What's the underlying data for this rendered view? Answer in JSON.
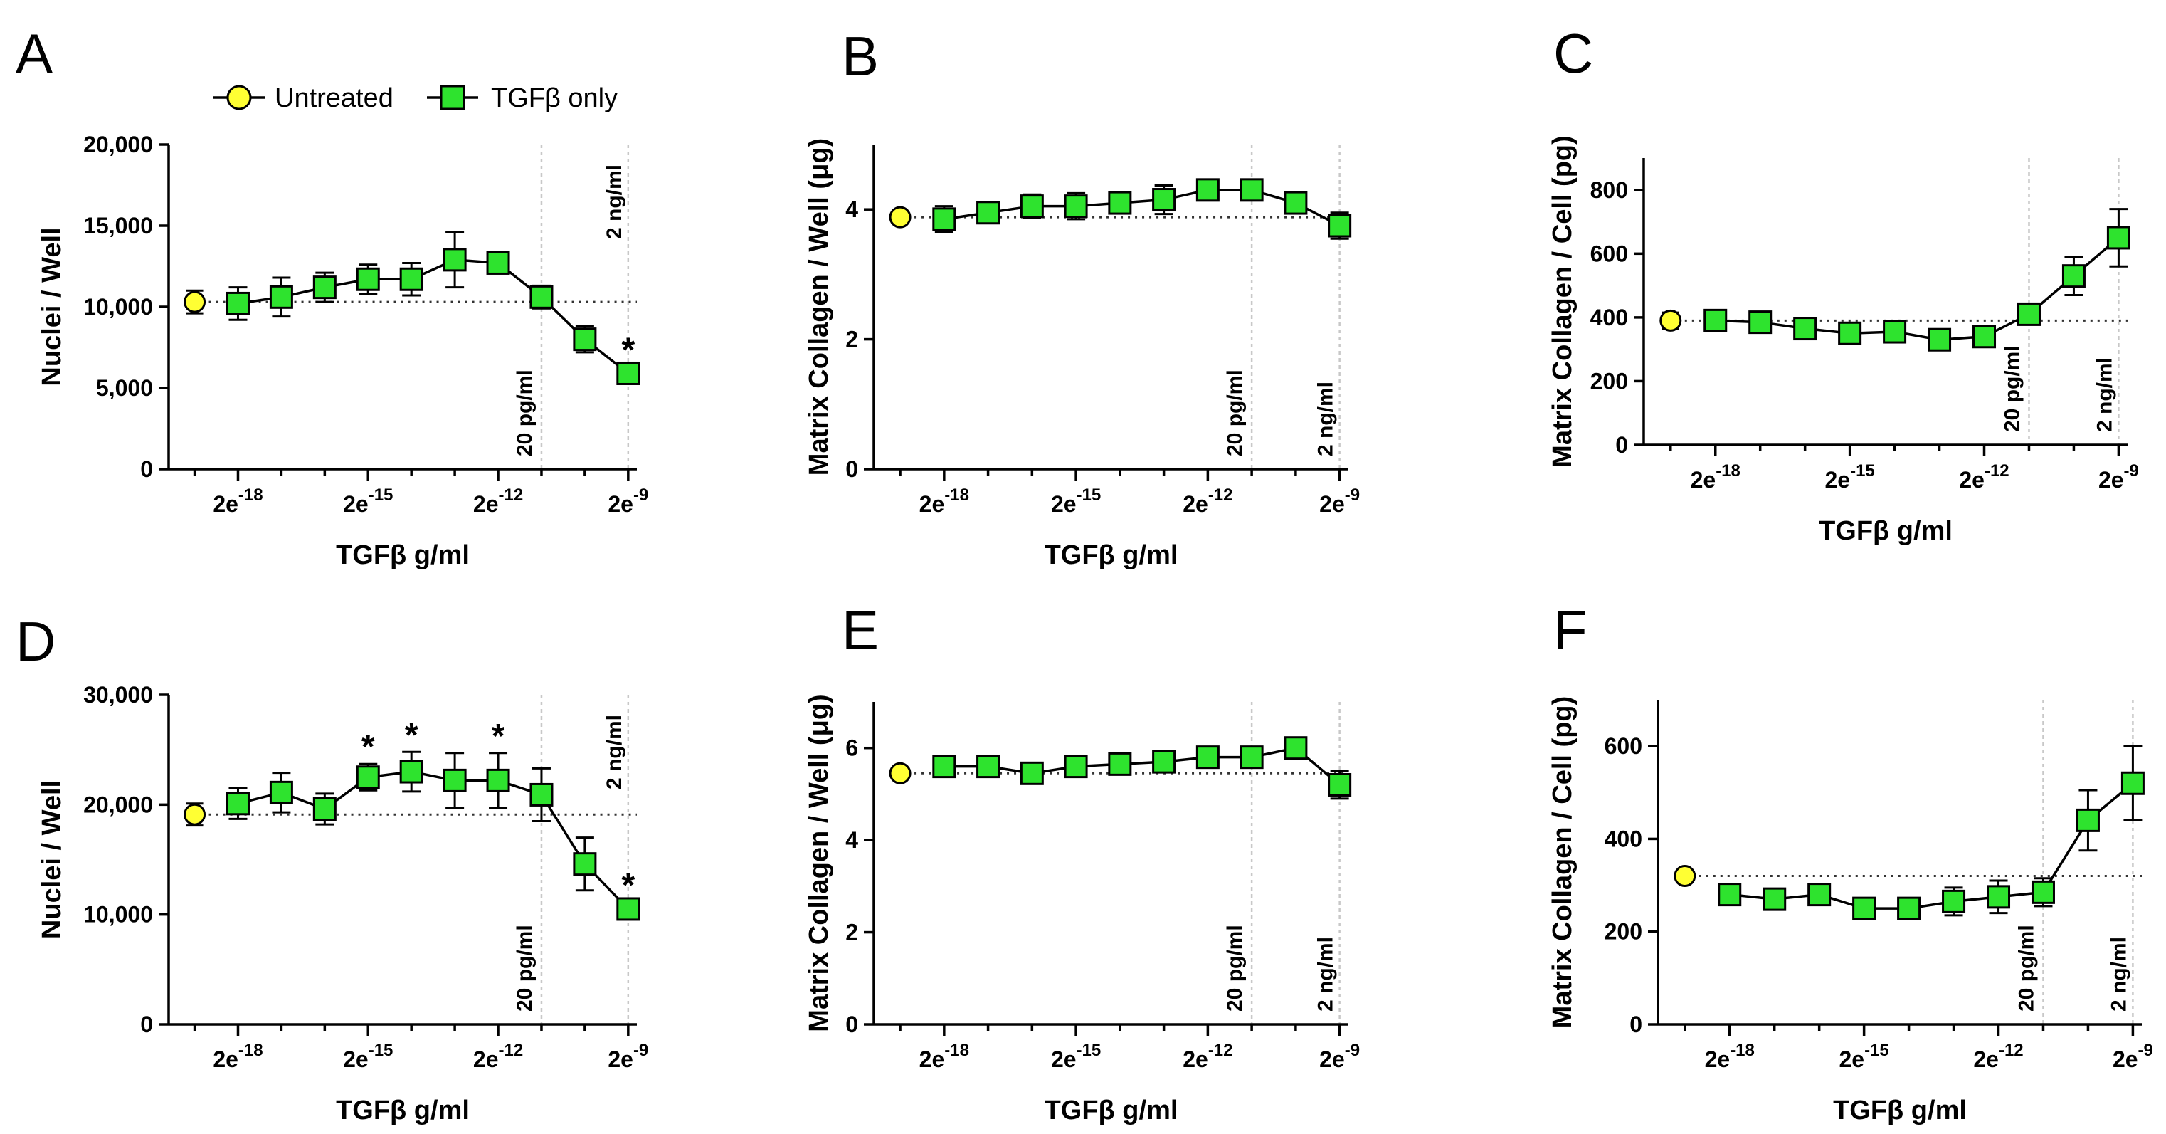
{
  "legend": {
    "untreated": {
      "label": "Untreated",
      "color": "#ffff33"
    },
    "tgfb": {
      "label": "TGFβ only",
      "color": "#2ee32e"
    }
  },
  "chart_data": [
    {
      "letter": "A",
      "type": "line",
      "xlabel": "TGFβ g/ml",
      "ylabel": "Nuclei / Well",
      "ylim": [
        0,
        20000
      ],
      "yticks": [
        0,
        5000,
        10000,
        15000,
        20000
      ],
      "yticklabels": [
        "0",
        "5,000",
        "10,000",
        "15,000",
        "20,000"
      ],
      "xtick_labels": [
        "2e-18",
        "2e-15",
        "2e-12",
        "2e-9"
      ],
      "ref_labels": [
        "20 pg/ml",
        "2 ng/ml"
      ],
      "untreated": {
        "value": 10300,
        "err": 700
      },
      "series": [
        {
          "x": -18,
          "y": 10200,
          "err": 1000
        },
        {
          "x": -17,
          "y": 10600,
          "err": 1200
        },
        {
          "x": -16,
          "y": 11200,
          "err": 900
        },
        {
          "x": -15,
          "y": 11700,
          "err": 900
        },
        {
          "x": -14,
          "y": 11700,
          "err": 1000
        },
        {
          "x": -13,
          "y": 12900,
          "err": 1700
        },
        {
          "x": -12,
          "y": 12700,
          "err": 600
        },
        {
          "x": -11,
          "y": 10600,
          "err": 700
        },
        {
          "x": -10,
          "y": 8000,
          "err": 800
        },
        {
          "x": -9,
          "y": 5900,
          "err": 400
        }
      ],
      "stars": [
        {
          "x": -9,
          "label": "*"
        }
      ]
    },
    {
      "letter": "B",
      "type": "line",
      "xlabel": "TGFβ g/ml",
      "ylabel": "Matrix Collagen / Well (μg)",
      "ylim": [
        0,
        5
      ],
      "yticks": [
        0,
        2,
        4
      ],
      "yticklabels": [
        "0",
        "2",
        "4"
      ],
      "xtick_labels": [
        "2e-18",
        "2e-15",
        "2e-12",
        "2e-9"
      ],
      "ref_labels": [
        "20 pg/ml",
        "2 ng/ml"
      ],
      "untreated": {
        "value": 3.88,
        "err": 0
      },
      "series": [
        {
          "x": -18,
          "y": 3.85,
          "err": 0.2
        },
        {
          "x": -17,
          "y": 3.95,
          "err": 0.15
        },
        {
          "x": -16,
          "y": 4.05,
          "err": 0.18
        },
        {
          "x": -15,
          "y": 4.05,
          "err": 0.2
        },
        {
          "x": -14,
          "y": 4.1,
          "err": 0.15
        },
        {
          "x": -13,
          "y": 4.15,
          "err": 0.22
        },
        {
          "x": -12,
          "y": 4.3,
          "err": 0.1
        },
        {
          "x": -11,
          "y": 4.3,
          "err": 0.12
        },
        {
          "x": -10,
          "y": 4.1,
          "err": 0.1
        },
        {
          "x": -9,
          "y": 3.75,
          "err": 0.2
        }
      ],
      "stars": []
    },
    {
      "letter": "C",
      "type": "line",
      "xlabel": "TGFβ g/ml",
      "ylabel": "Matrix Collagen / Cell (pg)",
      "ylim": [
        0,
        900
      ],
      "yticks": [
        0,
        200,
        400,
        600,
        800
      ],
      "yticklabels": [
        "0",
        "200",
        "400",
        "600",
        "800"
      ],
      "xtick_labels": [
        "2e-18",
        "2e-15",
        "2e-12",
        "2e-9"
      ],
      "ref_labels": [
        "20 pg/ml",
        "2 ng/ml"
      ],
      "untreated": {
        "value": 390,
        "err": 25
      },
      "series": [
        {
          "x": -18,
          "y": 390,
          "err": 25
        },
        {
          "x": -17,
          "y": 385,
          "err": 30
        },
        {
          "x": -16,
          "y": 365,
          "err": 20
        },
        {
          "x": -15,
          "y": 350,
          "err": 20
        },
        {
          "x": -14,
          "y": 355,
          "err": 20
        },
        {
          "x": -13,
          "y": 330,
          "err": 30
        },
        {
          "x": -12,
          "y": 340,
          "err": 20
        },
        {
          "x": -11,
          "y": 410,
          "err": 20
        },
        {
          "x": -10,
          "y": 530,
          "err": 60
        },
        {
          "x": -9,
          "y": 650,
          "err": 90
        }
      ],
      "stars": []
    },
    {
      "letter": "D",
      "type": "line",
      "xlabel": "TGFβ g/ml",
      "ylabel": "Nuclei / Well",
      "ylim": [
        0,
        30000
      ],
      "yticks": [
        0,
        10000,
        20000,
        30000
      ],
      "yticklabels": [
        "0",
        "10,000",
        "20,000",
        "30,000"
      ],
      "xtick_labels": [
        "2e-18",
        "2e-15",
        "2e-12",
        "2e-9"
      ],
      "ref_labels": [
        "20 pg/ml",
        "2 ng/ml"
      ],
      "untreated": {
        "value": 19100,
        "err": 1000
      },
      "series": [
        {
          "x": -18,
          "y": 20100,
          "err": 1400
        },
        {
          "x": -17,
          "y": 21100,
          "err": 1800
        },
        {
          "x": -16,
          "y": 19600,
          "err": 1400
        },
        {
          "x": -15,
          "y": 22500,
          "err": 1200
        },
        {
          "x": -14,
          "y": 23000,
          "err": 1800
        },
        {
          "x": -13,
          "y": 22200,
          "err": 2500
        },
        {
          "x": -12,
          "y": 22200,
          "err": 2500
        },
        {
          "x": -11,
          "y": 20900,
          "err": 2400
        },
        {
          "x": -10,
          "y": 14600,
          "err": 2400
        },
        {
          "x": -9,
          "y": 10500,
          "err": 600
        }
      ],
      "stars": [
        {
          "x": -15,
          "label": "*"
        },
        {
          "x": -14,
          "label": "*"
        },
        {
          "x": -12,
          "label": "*"
        },
        {
          "x": -9,
          "label": "*"
        }
      ]
    },
    {
      "letter": "E",
      "type": "line",
      "xlabel": "TGFβ g/ml",
      "ylabel": "Matrix Collagen / Well (μg)",
      "ylim": [
        0,
        7
      ],
      "yticks": [
        0,
        2,
        4,
        6
      ],
      "yticklabels": [
        "0",
        "2",
        "4",
        "6"
      ],
      "xtick_labels": [
        "2e-18",
        "2e-15",
        "2e-12",
        "2e-9"
      ],
      "ref_labels": [
        "20 pg/ml",
        "2 ng/ml"
      ],
      "untreated": {
        "value": 5.45,
        "err": 0
      },
      "series": [
        {
          "x": -18,
          "y": 5.6,
          "err": 0.15
        },
        {
          "x": -17,
          "y": 5.6,
          "err": 0.15
        },
        {
          "x": -16,
          "y": 5.45,
          "err": 0.15
        },
        {
          "x": -15,
          "y": 5.6,
          "err": 0.12
        },
        {
          "x": -14,
          "y": 5.65,
          "err": 0.12
        },
        {
          "x": -13,
          "y": 5.7,
          "err": 0.15
        },
        {
          "x": -12,
          "y": 5.8,
          "err": 0.15
        },
        {
          "x": -11,
          "y": 5.8,
          "err": 0.15
        },
        {
          "x": -10,
          "y": 6.0,
          "err": 0.1
        },
        {
          "x": -9,
          "y": 5.2,
          "err": 0.3
        }
      ],
      "stars": []
    },
    {
      "letter": "F",
      "type": "line",
      "xlabel": "TGFβ g/ml",
      "ylabel": "Matrix Collagen / Cell (pg)",
      "ylim": [
        0,
        700
      ],
      "yticks": [
        0,
        200,
        400,
        600
      ],
      "yticklabels": [
        "0",
        "200",
        "400",
        "600"
      ],
      "xtick_labels": [
        "2e-18",
        "2e-15",
        "2e-12",
        "2e-9"
      ],
      "ref_labels": [
        "20 pg/ml",
        "2 ng/ml"
      ],
      "untreated": {
        "value": 320,
        "err": 0
      },
      "series": [
        {
          "x": -18,
          "y": 280,
          "err": 15
        },
        {
          "x": -17,
          "y": 270,
          "err": 20
        },
        {
          "x": -16,
          "y": 280,
          "err": 15
        },
        {
          "x": -15,
          "y": 250,
          "err": 20
        },
        {
          "x": -14,
          "y": 250,
          "err": 20
        },
        {
          "x": -13,
          "y": 265,
          "err": 30
        },
        {
          "x": -12,
          "y": 275,
          "err": 35
        },
        {
          "x": -11,
          "y": 285,
          "err": 30
        },
        {
          "x": -10,
          "y": 440,
          "err": 65
        },
        {
          "x": -9,
          "y": 520,
          "err": 80
        }
      ],
      "stars": []
    }
  ]
}
